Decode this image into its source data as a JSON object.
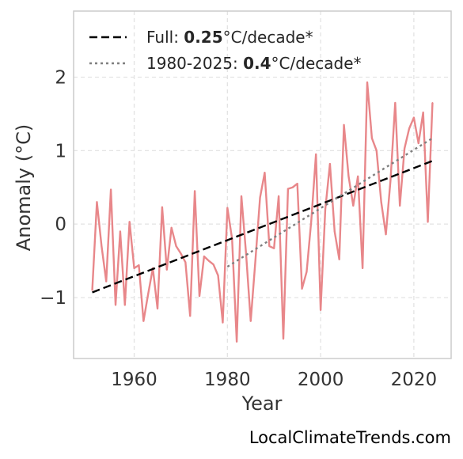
{
  "chart_data": {
    "type": "line",
    "xlabel": "Year",
    "ylabel": "Anomaly (°C)",
    "xlim": [
      1947,
      2028
    ],
    "ylim": [
      -1.83,
      2.9
    ],
    "xticks": [
      1960,
      1980,
      2000,
      2020
    ],
    "yticks": [
      -1,
      0,
      1,
      2
    ],
    "ytick_labels": [
      "−1",
      "0",
      "1",
      "2"
    ],
    "grid": true,
    "legend_position": "top-left",
    "x": [
      1951,
      1952,
      1953,
      1954,
      1955,
      1956,
      1957,
      1958,
      1959,
      1960,
      1961,
      1962,
      1963,
      1964,
      1965,
      1966,
      1967,
      1968,
      1969,
      1970,
      1971,
      1972,
      1973,
      1974,
      1975,
      1976,
      1977,
      1978,
      1979,
      1980,
      1981,
      1982,
      1983,
      1984,
      1985,
      1986,
      1987,
      1988,
      1989,
      1990,
      1991,
      1992,
      1993,
      1994,
      1995,
      1996,
      1997,
      1998,
      1999,
      2000,
      2001,
      2002,
      2003,
      2004,
      2005,
      2006,
      2007,
      2008,
      2009,
      2010,
      2011,
      2012,
      2013,
      2014,
      2015,
      2016,
      2017,
      2018,
      2019,
      2020,
      2021,
      2022,
      2023,
      2024
    ],
    "series": [
      {
        "color": "#e8878a",
        "style": "solid",
        "values": [
          -0.9,
          0.3,
          -0.3,
          -0.78,
          0.47,
          -1.1,
          -0.1,
          -1.1,
          0.03,
          -0.6,
          -0.56,
          -1.32,
          -0.95,
          -0.6,
          -1.15,
          0.23,
          -0.62,
          -0.05,
          -0.3,
          -0.4,
          -0.52,
          -1.25,
          0.45,
          -0.98,
          -0.44,
          -0.5,
          -0.55,
          -0.7,
          -1.34,
          0.22,
          -0.2,
          -1.6,
          0.38,
          -0.4,
          -1.32,
          -0.5,
          0.36,
          0.7,
          -0.3,
          -0.33,
          0.38,
          -1.56,
          0.48,
          0.5,
          0.55,
          -0.88,
          -0.65,
          0.05,
          0.95,
          -1.17,
          0.2,
          0.82,
          -0.1,
          -0.48,
          1.35,
          0.65,
          0.25,
          0.65,
          -0.6,
          1.93,
          1.17,
          1.0,
          0.3,
          -0.14,
          0.6,
          1.65,
          0.25,
          1.03,
          1.3,
          1.45,
          1.1,
          1.52,
          0.03,
          1.65
        ]
      }
    ],
    "trends": [
      {
        "name": "Full",
        "rate": "0.25",
        "color": "#000000",
        "style": "dashed",
        "x": [
          1951,
          2024
        ],
        "y": [
          -0.93,
          0.86
        ]
      },
      {
        "name": "1980-2025",
        "rate": "0.4",
        "color": "#7f7f7f",
        "style": "dotted",
        "x": [
          1980,
          2024
        ],
        "y": [
          -0.58,
          1.17
        ]
      }
    ]
  },
  "legend": {
    "entries": [
      {
        "prefix": "Full: ",
        "bold": "0.25",
        "suffix": "°C/decade*"
      },
      {
        "prefix": "1980-2025: ",
        "bold": "0.4",
        "suffix": "°C/decade*"
      }
    ]
  },
  "footer": "LocalClimateTrends.com"
}
